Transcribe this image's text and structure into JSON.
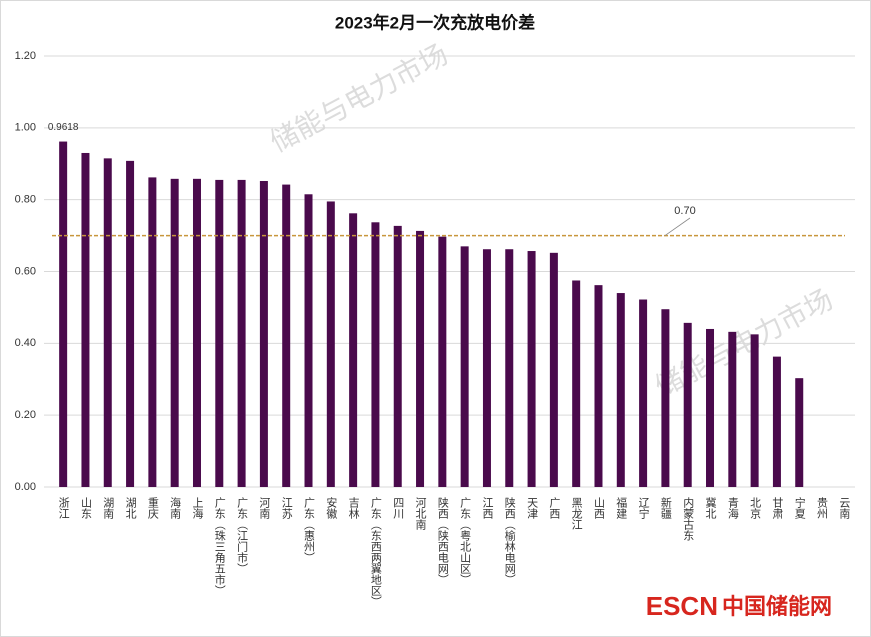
{
  "chart_data": {
    "type": "bar",
    "title": "2023年2月一次充放电价差",
    "categories": [
      "浙江",
      "山东",
      "湖南",
      "湖北",
      "重庆",
      "海南",
      "上海",
      "广东（珠三角五市）",
      "广东（江门市）",
      "河南",
      "江苏",
      "广东（惠州）",
      "安徽",
      "吉林",
      "广东（东西两翼地区）",
      "四川",
      "河北南",
      "陕西（陕西电网）",
      "广东（粤北山区）",
      "江西",
      "陕西（榆林电网）",
      "天津",
      "广西",
      "黑龙江",
      "山西",
      "福建",
      "辽宁",
      "新疆",
      "内蒙古东",
      "冀北",
      "青海",
      "北京",
      "甘肃",
      "宁夏",
      "贵州",
      "云南"
    ],
    "values": [
      0.9618,
      0.93,
      0.915,
      0.908,
      0.862,
      0.858,
      0.858,
      0.855,
      0.855,
      0.852,
      0.842,
      0.815,
      0.795,
      0.762,
      0.737,
      0.727,
      0.713,
      0.697,
      0.67,
      0.662,
      0.662,
      0.657,
      0.652,
      0.575,
      0.562,
      0.54,
      0.522,
      0.495,
      0.457,
      0.44,
      0.432,
      0.425,
      0.363,
      0.303,
      null,
      null
    ],
    "value_labels": [
      "0.9618",
      null,
      null,
      null,
      null,
      null,
      null,
      null,
      null,
      null,
      null,
      null,
      null,
      null,
      null,
      null,
      null,
      null,
      null,
      null,
      null,
      null,
      null,
      null,
      null,
      null,
      null,
      null,
      null,
      null,
      null,
      null,
      null,
      null,
      null,
      null
    ],
    "color": "#4a0a4c",
    "ylim": [
      0,
      1.2
    ],
    "yticks": [
      {
        "value": 0,
        "label": "0.00"
      },
      {
        "value": 0.2,
        "label": "0.20"
      },
      {
        "value": 0.4,
        "label": "0.40"
      },
      {
        "value": 0.6,
        "label": "0.60"
      },
      {
        "value": 0.8,
        "label": "0.80"
      },
      {
        "value": 1,
        "label": "1.00"
      },
      {
        "value": 1.2,
        "label": "1.20"
      }
    ],
    "grid": true,
    "reference_line": {
      "value": 0.7,
      "label": "0.70",
      "color": "#c8963c"
    },
    "watermark": "储能与电力市场",
    "logo": {
      "brand": "ESCN",
      "name": "中国储能网"
    }
  }
}
